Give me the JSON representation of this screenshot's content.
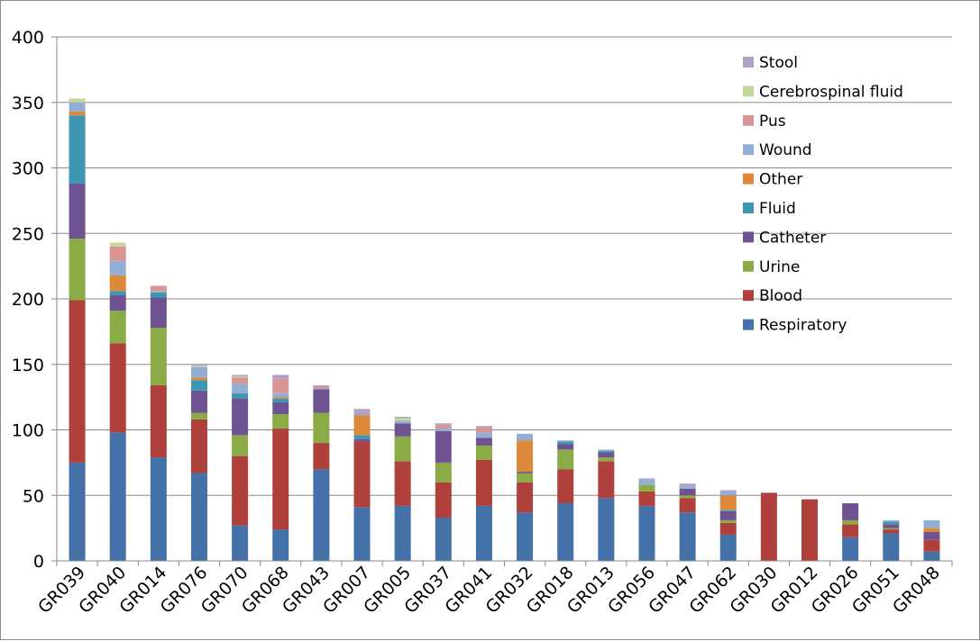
{
  "chart_data": {
    "type": "bar",
    "stacked": true,
    "ylim": [
      0,
      400
    ],
    "yticks": [
      0,
      50,
      100,
      150,
      200,
      250,
      300,
      350,
      400
    ],
    "grid": true,
    "legend_position": "top-right",
    "categories": [
      "GR039",
      "GR040",
      "GR014",
      "GR076",
      "GR070",
      "GR068",
      "GR043",
      "GR007",
      "GR005",
      "GR037",
      "GR041",
      "GR032",
      "GR018",
      "GR013",
      "GR056",
      "GR047",
      "GR062",
      "GR030",
      "GR012",
      "GR026",
      "GR051",
      "GR048"
    ],
    "series": [
      {
        "name": "Respiratory",
        "color": "#4472a8",
        "values": [
          75,
          98,
          79,
          67,
          27,
          24,
          70,
          41,
          42,
          33,
          42,
          37,
          44,
          48,
          42,
          37,
          20,
          0,
          0,
          18,
          21,
          7
        ]
      },
      {
        "name": "Blood",
        "color": "#b0403c",
        "values": [
          124,
          68,
          55,
          41,
          53,
          77,
          20,
          50,
          34,
          27,
          35,
          23,
          26,
          28,
          11,
          11,
          9,
          52,
          47,
          10,
          3,
          9
        ]
      },
      {
        "name": "Urine",
        "color": "#8aab45",
        "values": [
          47,
          25,
          44,
          5,
          16,
          11,
          23,
          0,
          19,
          15,
          11,
          7,
          15,
          3,
          5,
          2,
          2,
          0,
          0,
          3,
          1,
          0
        ]
      },
      {
        "name": "Catheter",
        "color": "#6f5292",
        "values": [
          42,
          12,
          23,
          17,
          28,
          9,
          18,
          2,
          10,
          24,
          6,
          1,
          4,
          4,
          0,
          5,
          7,
          0,
          0,
          13,
          3,
          6
        ]
      },
      {
        "name": "Fluid",
        "color": "#3e97b0",
        "values": [
          52,
          3,
          4,
          8,
          4,
          3,
          0,
          3,
          0,
          0,
          0,
          0,
          2,
          1,
          0,
          0,
          1,
          0,
          0,
          0,
          2,
          0
        ]
      },
      {
        "name": "Other",
        "color": "#de8839",
        "values": [
          3,
          12,
          0,
          2,
          0,
          1,
          0,
          15,
          0,
          0,
          0,
          24,
          0,
          0,
          0,
          0,
          11,
          0,
          0,
          0,
          0,
          3
        ]
      },
      {
        "name": "Wound",
        "color": "#93aed5",
        "values": [
          7,
          11,
          1,
          8,
          7,
          3,
          1,
          2,
          2,
          2,
          4,
          5,
          1,
          1,
          4,
          2,
          3,
          0,
          0,
          0,
          1,
          6
        ]
      },
      {
        "name": "Pus",
        "color": "#d99593",
        "values": [
          0,
          11,
          4,
          0,
          5,
          11,
          2,
          1,
          0,
          3,
          4,
          0,
          0,
          0,
          0,
          0,
          0,
          0,
          0,
          0,
          0,
          0
        ]
      },
      {
        "name": "Cerebrospinal fluid",
        "color": "#c3d69b",
        "values": [
          3,
          3,
          0,
          1,
          1,
          0,
          0,
          0,
          2,
          0,
          0,
          0,
          0,
          0,
          0,
          0,
          0,
          0,
          0,
          0,
          0,
          0
        ]
      },
      {
        "name": "Stool",
        "color": "#b2a1c7",
        "values": [
          0,
          0,
          0,
          1,
          1,
          3,
          0,
          2,
          1,
          1,
          1,
          0,
          0,
          0,
          1,
          2,
          1,
          0,
          0,
          0,
          0,
          0
        ]
      }
    ]
  }
}
